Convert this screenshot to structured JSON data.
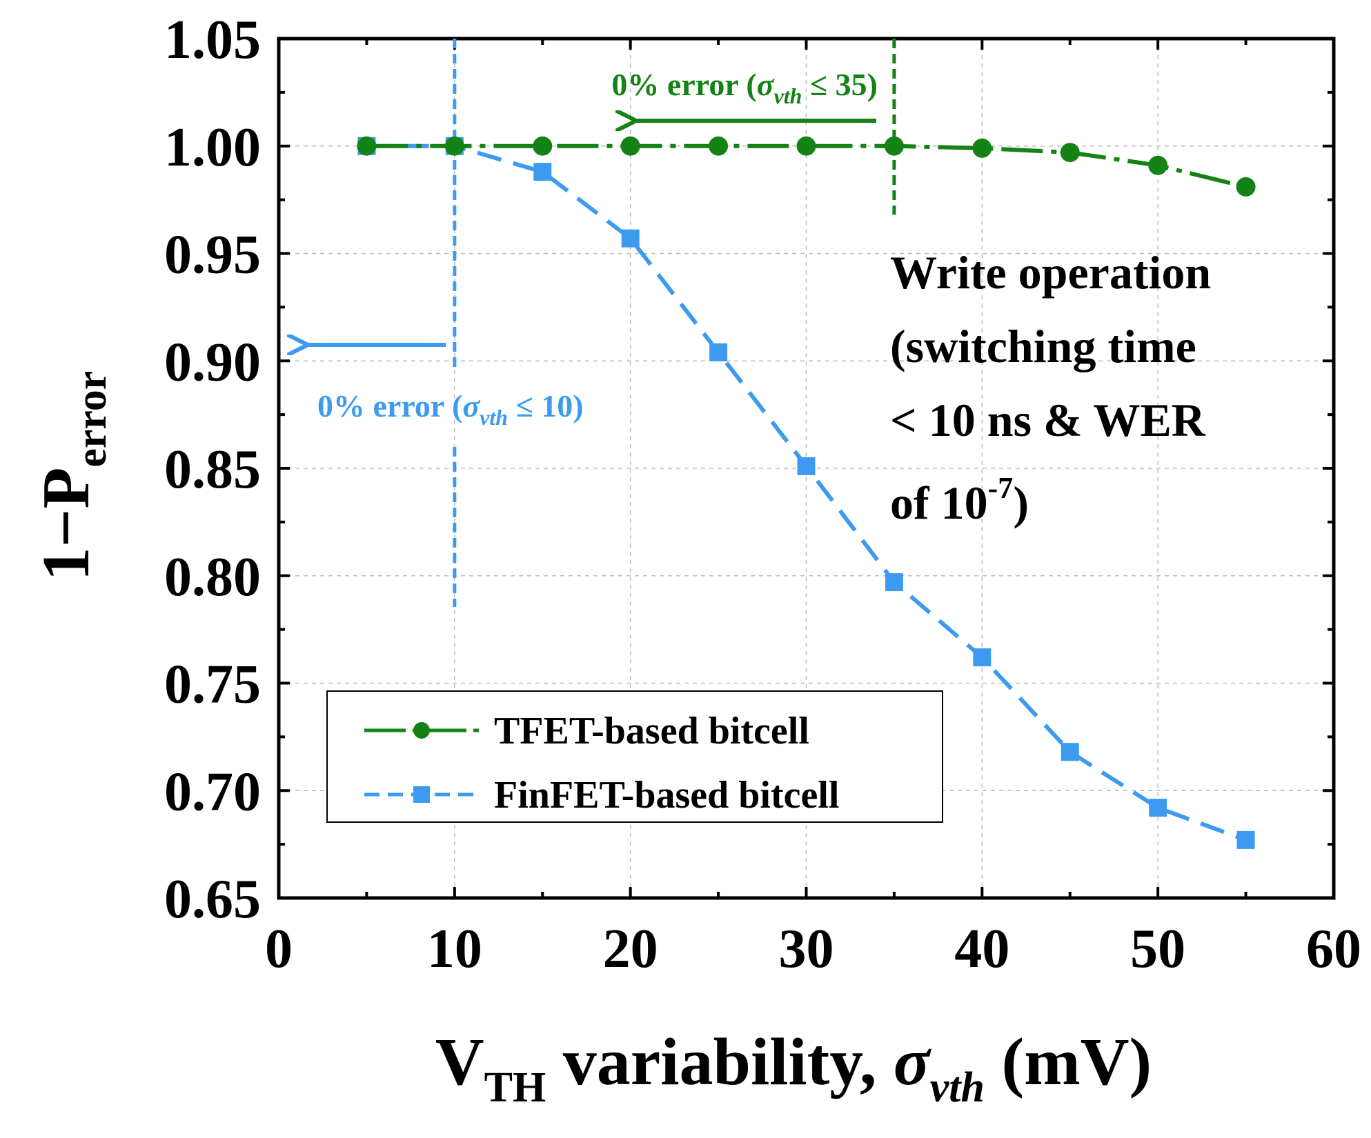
{
  "chart_data": {
    "type": "line",
    "x_axis": {
      "label_main": "V",
      "label_sub": "TH",
      "label_rest": " variability, ",
      "label_sigma": "σ",
      "label_sigma_sub": "vth",
      "label_unit": " (mV)",
      "ticks": [
        "0",
        "10",
        "20",
        "30",
        "40",
        "50",
        "60"
      ],
      "xlim": [
        0,
        60
      ]
    },
    "y_axis": {
      "label_main": "1−P",
      "label_sub": "error",
      "ticks": [
        "0.65",
        "0.70",
        "0.75",
        "0.80",
        "0.85",
        "0.90",
        "0.95",
        "1.00",
        "1.05"
      ],
      "ylim": [
        0.65,
        1.05
      ]
    },
    "grid": true,
    "series": [
      {
        "name": "TFET-based bitcell",
        "color": "#148214",
        "marker": "circle",
        "style": "dash-dot",
        "x": [
          5,
          10,
          15,
          20,
          25,
          30,
          35,
          40,
          45,
          50,
          55
        ],
        "y": [
          1.0,
          1.0,
          1.0,
          1.0,
          1.0,
          1.0,
          1.0,
          0.999,
          0.997,
          0.991,
          0.981
        ]
      },
      {
        "name": "FinFET-based bitcell",
        "color": "#3c9bf0",
        "marker": "square",
        "style": "dashed",
        "x": [
          5,
          10,
          15,
          20,
          25,
          30,
          35,
          40,
          45,
          50,
          55
        ],
        "y": [
          1.0,
          1.0,
          0.988,
          0.957,
          0.904,
          0.851,
          0.797,
          0.762,
          0.718,
          0.692,
          0.677
        ]
      }
    ],
    "legend": {
      "placement": "bottom-left",
      "entries": [
        "TFET-based bitcell",
        "FinFET-based bitcell"
      ]
    },
    "annotations": {
      "green": {
        "prefix": "0% error (",
        "sigma": "σ",
        "sigma_sub": "vth",
        "suffix": " ≤ 35)",
        "threshold_x": 35
      },
      "blue": {
        "prefix": "0% error (",
        "sigma": "σ",
        "sigma_sub": "vth",
        "suffix": " ≤ 10)",
        "threshold_x": 10
      },
      "note": {
        "line1": "Write operation",
        "line2": "(switching time",
        "line3": "< 10 ns & WER",
        "line4_prefix": "of 10",
        "line4_sup": "-7",
        "line4_suffix": ")"
      }
    }
  }
}
